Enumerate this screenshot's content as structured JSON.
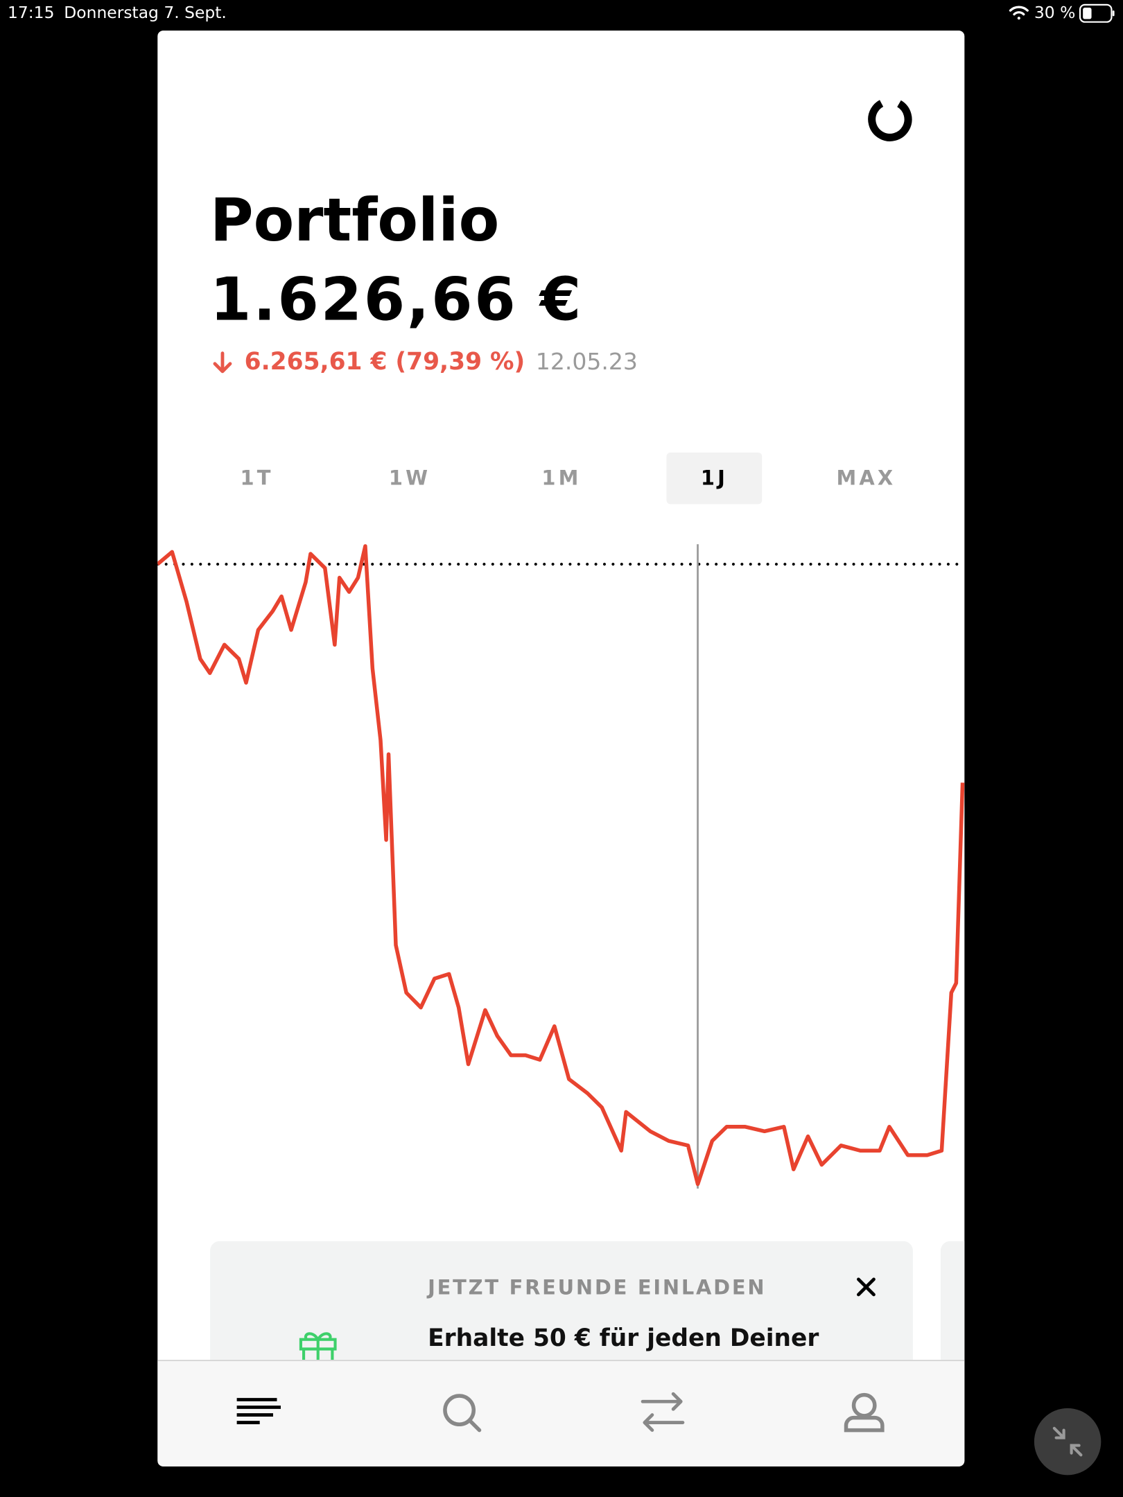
{
  "status": {
    "time": "17:15",
    "date": "Donnerstag 7. Sept.",
    "battery": "30 %"
  },
  "header": {
    "title": "Portfolio",
    "value": "1.626,66 €",
    "change": "6.265,61 € (79,39 %)",
    "date": "12.05.23"
  },
  "tabs": [
    "1T",
    "1W",
    "1M",
    "1J",
    "MAX"
  ],
  "selected_tab": 3,
  "chart": {
    "type": "line",
    "color": "#e8432f",
    "xlim": [
      0,
      100
    ],
    "ylim": [
      0,
      100
    ],
    "baseline": 96.9,
    "cursor_x": 67.1,
    "x": [
      0,
      1.8,
      3.6,
      5.3,
      6.5,
      8.3,
      10.1,
      11.0,
      12.5,
      14.3,
      15.4,
      16.6,
      18.4,
      19.0,
      20.8,
      22.0,
      22.6,
      23.8,
      24.9,
      25.8,
      26.7,
      27.7,
      28.4,
      28.7,
      29.6,
      30.9,
      32.7,
      34.4,
      36.2,
      37.4,
      38.6,
      40.7,
      42.2,
      43.9,
      45.7,
      47.5,
      49.3,
      51.1,
      53.4,
      55.2,
      57.6,
      58.2,
      61.2,
      63.5,
      65.9,
      67.1,
      68.9,
      70.7,
      73.0,
      75.4,
      77.8,
      79.0,
      80.8,
      82.5,
      84.9,
      87.3,
      89.7,
      90.9,
      93.2,
      95.6,
      97.4,
      98.6,
      99.2,
      100.0
    ],
    "values": [
      96.9,
      98.8,
      91.1,
      82.2,
      80.0,
      84.4,
      82.2,
      78.5,
      86.7,
      89.6,
      91.9,
      86.7,
      94.1,
      98.5,
      96.3,
      84.4,
      94.8,
      92.6,
      94.8,
      99.7,
      80.7,
      69.6,
      54.1,
      67.4,
      37.8,
      30.4,
      28.1,
      32.6,
      33.3,
      28.1,
      19.3,
      27.7,
      23.7,
      20.7,
      20.7,
      20.0,
      25.2,
      17.0,
      14.8,
      12.6,
      5.9,
      11.9,
      8.9,
      7.4,
      6.7,
      0.7,
      7.4,
      9.6,
      9.6,
      8.9,
      9.6,
      3.0,
      8.1,
      3.7,
      6.7,
      5.9,
      5.9,
      9.6,
      5.2,
      5.2,
      5.9,
      30.4,
      31.9,
      63.0
    ]
  },
  "promo": {
    "heading": "JETZT FREUNDE EINLADEN",
    "text": "Erhalte 50 € für jeden Deiner"
  }
}
